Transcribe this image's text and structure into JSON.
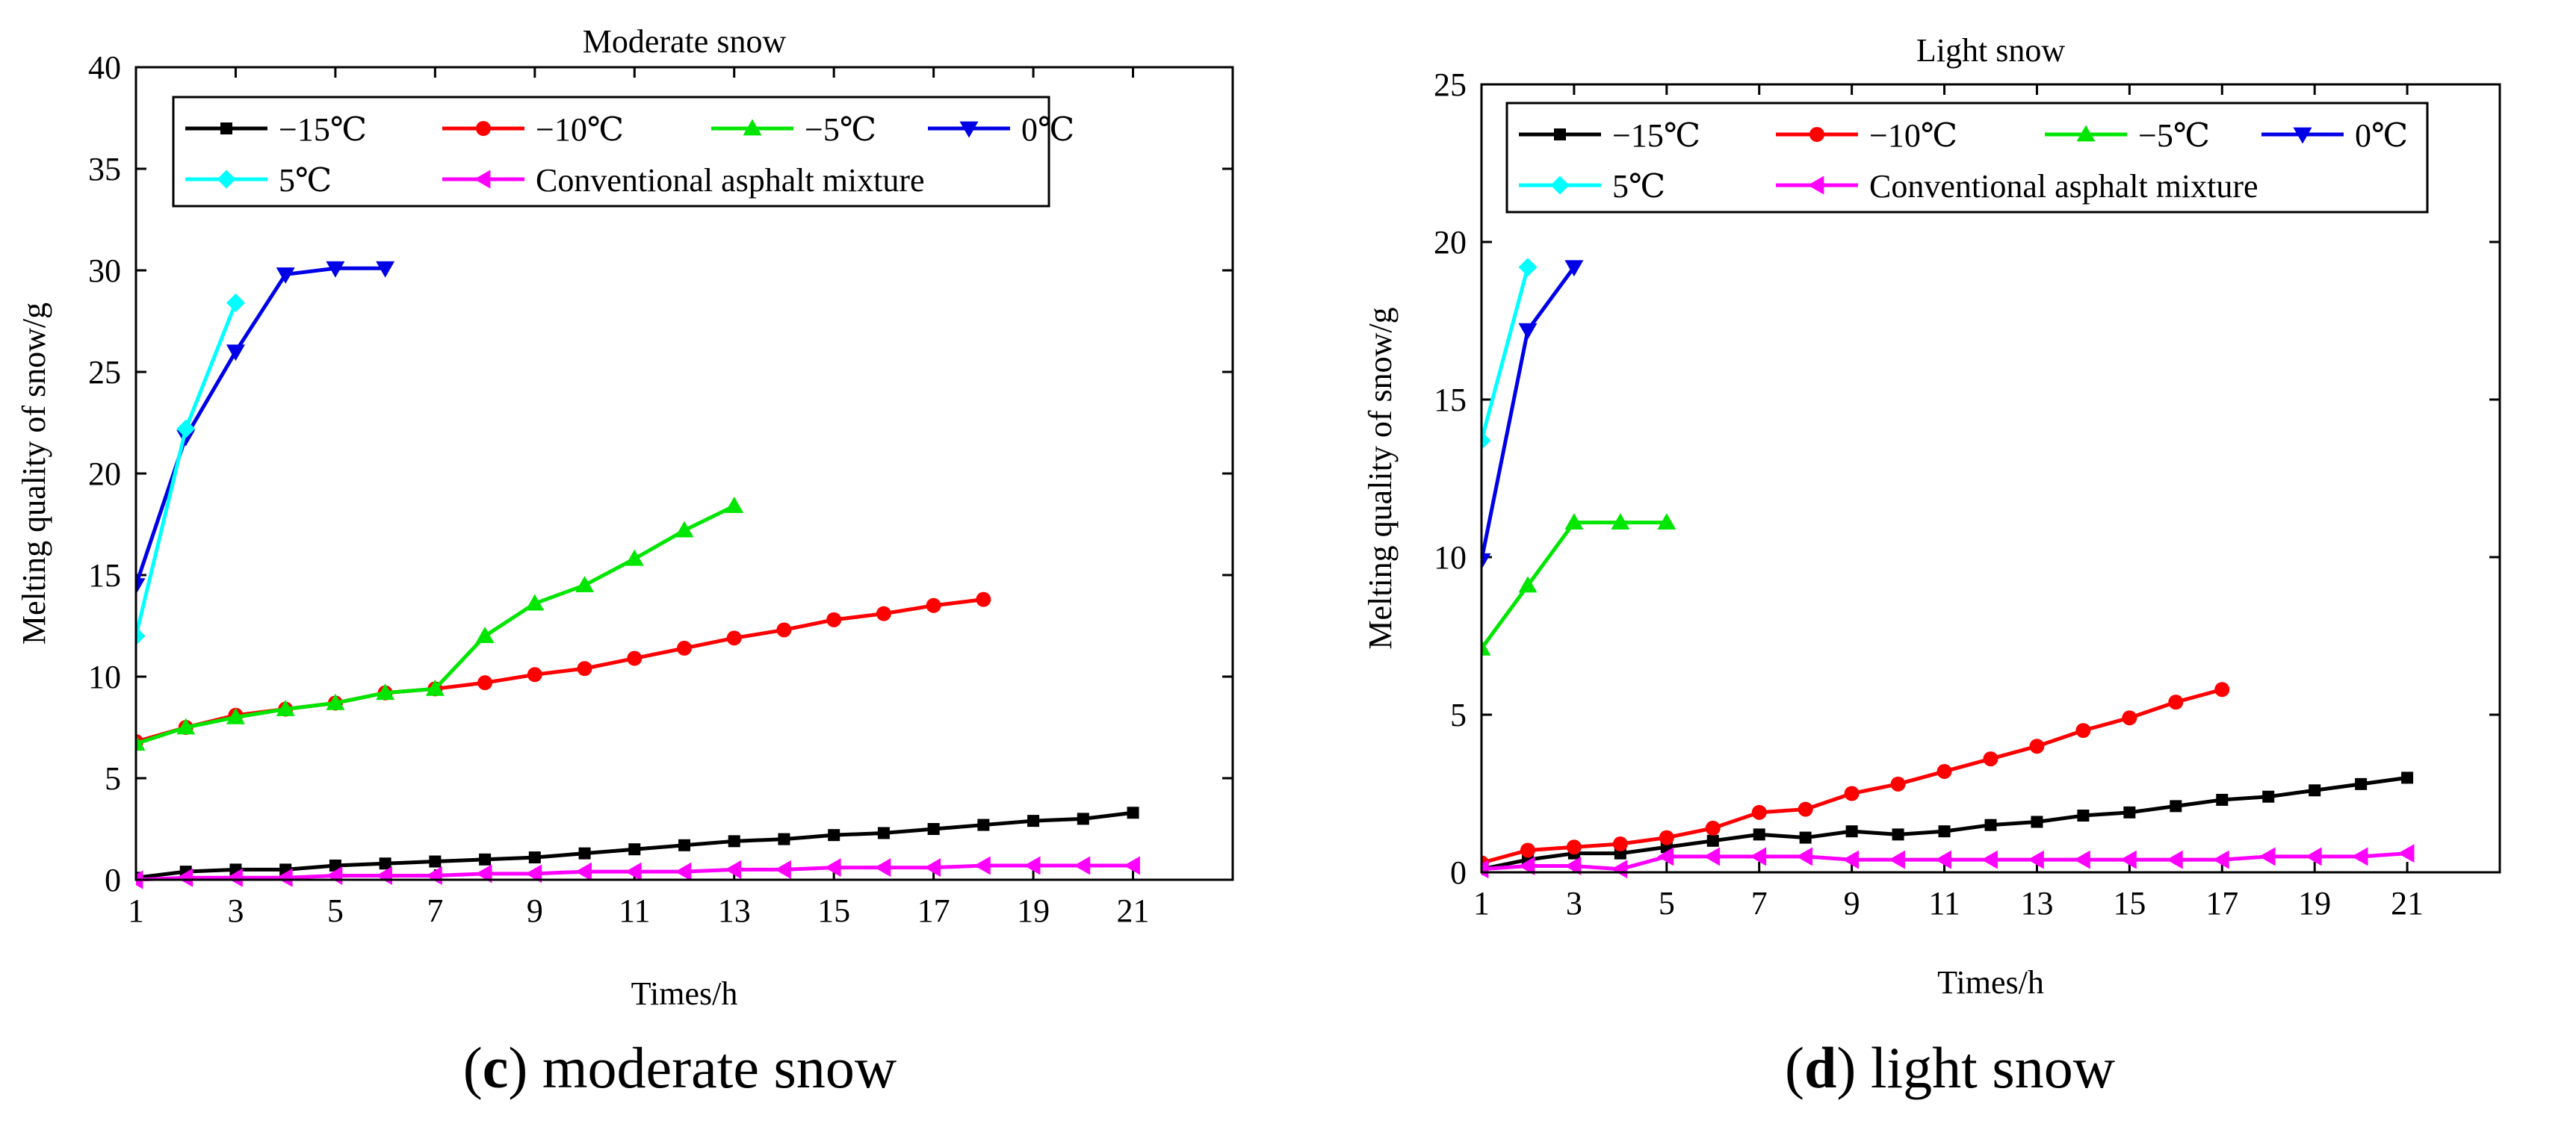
{
  "chart_data": [
    {
      "type": "line",
      "title": "Moderate snow",
      "xlabel": "Times/h",
      "ylabel": "Melting quality of snow/g",
      "xlim": [
        1,
        23
      ],
      "ylim": [
        0,
        40
      ],
      "xticks": [
        1,
        3,
        5,
        7,
        9,
        11,
        13,
        15,
        17,
        19,
        21
      ],
      "yticks": [
        0,
        5,
        10,
        15,
        20,
        25,
        30,
        35,
        40
      ],
      "legend": "top-left",
      "caption": {
        "letter": "c",
        "text": " moderate snow"
      },
      "series": [
        {
          "name": "−15℃",
          "color": "#000000",
          "marker": "square",
          "x": [
            1,
            2,
            3,
            4,
            5,
            6,
            7,
            8,
            9,
            10,
            11,
            12,
            13,
            14,
            15,
            16,
            17,
            18,
            19,
            20,
            21
          ],
          "y": [
            0.1,
            0.4,
            0.5,
            0.5,
            0.7,
            0.8,
            0.9,
            1.0,
            1.1,
            1.3,
            1.5,
            1.7,
            1.9,
            2.0,
            2.2,
            2.3,
            2.5,
            2.7,
            2.9,
            3.0,
            3.3
          ]
        },
        {
          "name": "−10℃",
          "color": "#ff0000",
          "marker": "circle",
          "x": [
            1,
            2,
            3,
            4,
            5,
            6,
            7,
            8,
            9,
            10,
            11,
            12,
            13,
            14,
            15,
            16,
            17,
            18
          ],
          "y": [
            6.8,
            7.5,
            8.1,
            8.4,
            8.7,
            9.2,
            9.4,
            9.7,
            10.1,
            10.4,
            10.9,
            11.4,
            11.9,
            12.3,
            12.8,
            13.1,
            13.5,
            13.8
          ]
        },
        {
          "name": "−5℃",
          "color": "#00e600",
          "marker": "triangle-up",
          "x": [
            1,
            2,
            3,
            4,
            5,
            6,
            7,
            8,
            9,
            10,
            11,
            12,
            13
          ],
          "y": [
            6.7,
            7.5,
            8.0,
            8.4,
            8.7,
            9.2,
            9.4,
            12.0,
            13.6,
            14.5,
            15.8,
            17.2,
            18.4
          ]
        },
        {
          "name": "0℃",
          "color": "#0000e6",
          "marker": "triangle-down",
          "x": [
            1,
            2,
            3,
            4,
            5,
            6
          ],
          "y": [
            14.5,
            21.8,
            26.0,
            29.8,
            30.1,
            30.1
          ]
        },
        {
          "name": "5℃",
          "color": "#00ffff",
          "marker": "diamond",
          "x": [
            1,
            2,
            3
          ],
          "y": [
            12.0,
            22.2,
            28.4
          ]
        },
        {
          "name": "Conventional asphalt mixture",
          "color": "#ff00ff",
          "marker": "triangle-left",
          "x": [
            1,
            2,
            3,
            4,
            5,
            6,
            7,
            8,
            9,
            10,
            11,
            12,
            13,
            14,
            15,
            16,
            17,
            18,
            19,
            20,
            21
          ],
          "y": [
            0.0,
            0.1,
            0.1,
            0.1,
            0.2,
            0.2,
            0.2,
            0.3,
            0.3,
            0.4,
            0.4,
            0.4,
            0.5,
            0.5,
            0.6,
            0.6,
            0.6,
            0.7,
            0.7,
            0.7,
            0.7
          ]
        }
      ]
    },
    {
      "type": "line",
      "title": "Light snow",
      "xlabel": "Times/h",
      "ylabel": "Melting quality of snow/g",
      "xlim": [
        1,
        23
      ],
      "ylim": [
        0,
        25
      ],
      "xticks": [
        1,
        3,
        5,
        7,
        9,
        11,
        13,
        15,
        17,
        19,
        21
      ],
      "yticks": [
        0,
        5,
        10,
        15,
        20,
        25
      ],
      "legend": "top-left",
      "caption": {
        "letter": "d",
        "text": " light snow"
      },
      "series": [
        {
          "name": "−15℃",
          "color": "#000000",
          "marker": "square",
          "x": [
            1,
            2,
            3,
            4,
            5,
            6,
            7,
            8,
            9,
            10,
            11,
            12,
            13,
            14,
            15,
            16,
            17,
            18,
            19,
            20,
            21
          ],
          "y": [
            0.1,
            0.4,
            0.6,
            0.6,
            0.8,
            1.0,
            1.2,
            1.1,
            1.3,
            1.2,
            1.3,
            1.5,
            1.6,
            1.8,
            1.9,
            2.1,
            2.3,
            2.4,
            2.6,
            2.8,
            3.0
          ]
        },
        {
          "name": "−10℃",
          "color": "#ff0000",
          "marker": "circle",
          "x": [
            1,
            2,
            3,
            4,
            5,
            6,
            7,
            8,
            9,
            10,
            11,
            12,
            13,
            14,
            15,
            16,
            17
          ],
          "y": [
            0.3,
            0.7,
            0.8,
            0.9,
            1.1,
            1.4,
            1.9,
            2.0,
            2.5,
            2.8,
            3.2,
            3.6,
            4.0,
            4.5,
            4.9,
            5.4,
            5.8
          ]
        },
        {
          "name": "−5℃",
          "color": "#00e600",
          "marker": "triangle-up",
          "x": [
            1,
            2,
            3,
            4,
            5
          ],
          "y": [
            7.1,
            9.1,
            11.1,
            11.1,
            11.1
          ]
        },
        {
          "name": "0℃",
          "color": "#0000e6",
          "marker": "triangle-down",
          "x": [
            1,
            2,
            3
          ],
          "y": [
            9.9,
            17.2,
            19.2
          ]
        },
        {
          "name": "5℃",
          "color": "#00ffff",
          "marker": "diamond",
          "x": [
            1,
            2
          ],
          "y": [
            13.7,
            19.2
          ]
        },
        {
          "name": "Conventional asphalt mixture",
          "color": "#ff00ff",
          "marker": "triangle-left",
          "x": [
            1,
            2,
            3,
            4,
            5,
            6,
            7,
            8,
            9,
            10,
            11,
            12,
            13,
            14,
            15,
            16,
            17,
            18,
            19,
            20,
            21
          ],
          "y": [
            0.1,
            0.2,
            0.2,
            0.1,
            0.5,
            0.5,
            0.5,
            0.5,
            0.4,
            0.4,
            0.4,
            0.4,
            0.4,
            0.4,
            0.4,
            0.4,
            0.4,
            0.5,
            0.5,
            0.5,
            0.6
          ]
        }
      ]
    }
  ]
}
